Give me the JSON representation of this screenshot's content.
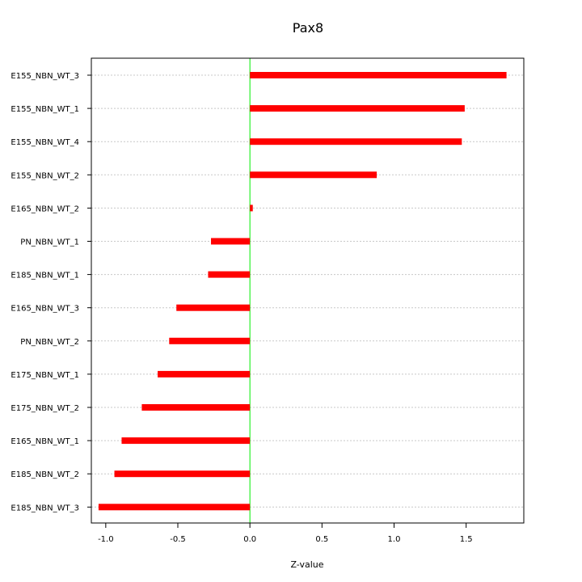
{
  "chart_data": {
    "type": "bar",
    "orientation": "horizontal",
    "title": "Pax8",
    "xlabel": "Z-value",
    "ylabel": "",
    "xlim": [
      -1.1,
      1.9
    ],
    "xticks": [
      -1.0,
      -0.5,
      0.0,
      0.5,
      1.0,
      1.5
    ],
    "xtick_labels": [
      "-1.0",
      "-0.5",
      "0.0",
      "0.5",
      "1.0",
      "1.5"
    ],
    "categories": [
      "E155_NBN_WT_3",
      "E155_NBN_WT_1",
      "E155_NBN_WT_4",
      "E155_NBN_WT_2",
      "E165_NBN_WT_2",
      "PN_NBN_WT_1",
      "E185_NBN_WT_1",
      "E165_NBN_WT_3",
      "PN_NBN_WT_2",
      "E175_NBN_WT_1",
      "E175_NBN_WT_2",
      "E165_NBN_WT_1",
      "E185_NBN_WT_2",
      "E185_NBN_WT_3"
    ],
    "values": [
      1.78,
      1.49,
      1.47,
      0.88,
      0.02,
      -0.27,
      -0.29,
      -0.51,
      -0.56,
      -0.64,
      -0.75,
      -0.89,
      -0.94,
      -1.05
    ],
    "grid": "horizontal-dotted",
    "bar_color": "#ff0000",
    "zero_line_color": "#00ee00"
  }
}
